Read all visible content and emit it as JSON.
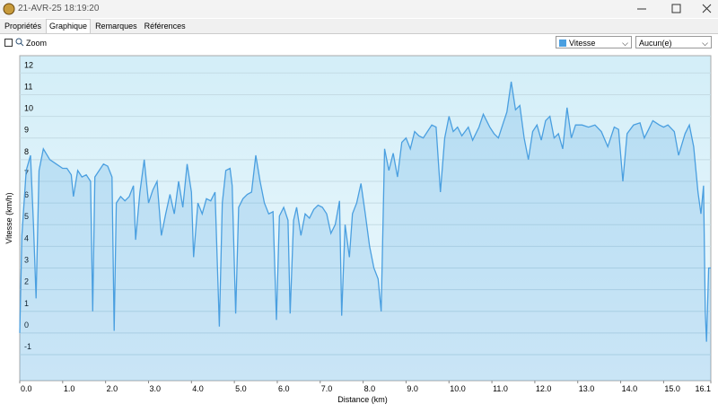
{
  "window": {
    "title": "21-AVR-25 18:19:20"
  },
  "tabs": [
    "Propriétés",
    "Graphique",
    "Remarques",
    "Références"
  ],
  "toolbar": {
    "zoom": "Zoom",
    "second_select": "Aucun(e)"
  },
  "chart_data": {
    "type": "line",
    "x_label": "Distance  (km)",
    "y_label": "Vitesse (km/h)",
    "x": [
      0.0,
      0.05,
      0.15,
      0.25,
      0.32,
      0.38,
      0.45,
      0.55,
      0.7,
      0.85,
      1.0,
      1.1,
      1.2,
      1.25,
      1.35,
      1.45,
      1.55,
      1.65,
      1.7,
      1.75,
      1.85,
      1.95,
      2.05,
      2.15,
      2.2,
      2.25,
      2.35,
      2.45,
      2.55,
      2.65,
      2.7,
      2.8,
      2.9,
      3.0,
      3.1,
      3.2,
      3.3,
      3.4,
      3.5,
      3.6,
      3.7,
      3.8,
      3.9,
      4.0,
      4.05,
      4.15,
      4.25,
      4.35,
      4.45,
      4.55,
      4.65,
      4.72,
      4.8,
      4.9,
      4.95,
      5.03,
      5.1,
      5.2,
      5.3,
      5.4,
      5.5,
      5.6,
      5.7,
      5.8,
      5.9,
      5.98,
      6.05,
      6.15,
      6.25,
      6.3,
      6.38,
      6.45,
      6.55,
      6.65,
      6.75,
      6.85,
      6.95,
      7.05,
      7.15,
      7.25,
      7.35,
      7.45,
      7.5,
      7.58,
      7.68,
      7.75,
      7.85,
      7.95,
      8.05,
      8.15,
      8.25,
      8.35,
      8.42,
      8.5,
      8.6,
      8.7,
      8.8,
      8.9,
      9.0,
      9.1,
      9.2,
      9.3,
      9.4,
      9.5,
      9.6,
      9.7,
      9.8,
      9.9,
      10.0,
      10.1,
      10.2,
      10.3,
      10.45,
      10.55,
      10.7,
      10.8,
      10.95,
      11.05,
      11.15,
      11.25,
      11.35,
      11.45,
      11.55,
      11.65,
      11.75,
      11.85,
      11.95,
      12.05,
      12.15,
      12.25,
      12.35,
      12.45,
      12.55,
      12.65,
      12.75,
      12.85,
      12.95,
      13.1,
      13.25,
      13.4,
      13.55,
      13.7,
      13.85,
      13.95,
      14.05,
      14.15,
      14.3,
      14.45,
      14.55,
      14.65,
      14.75,
      14.9,
      15.0,
      15.1,
      15.25,
      15.35,
      15.5,
      15.6,
      15.7,
      15.8,
      15.87,
      15.93,
      15.97,
      16.0,
      16.05,
      16.1
    ],
    "series": [
      {
        "name": "Vitesse",
        "color": "#4a9fe0",
        "values": [
          0.0,
          4.5,
          7.5,
          8.2,
          5.0,
          1.6,
          7.5,
          8.5,
          8.0,
          7.8,
          7.6,
          7.6,
          7.3,
          6.3,
          7.5,
          7.2,
          7.3,
          7.0,
          1.0,
          7.2,
          7.5,
          7.8,
          7.7,
          7.2,
          0.1,
          6.0,
          6.3,
          6.1,
          6.3,
          6.8,
          4.3,
          6.5,
          8.0,
          6.0,
          6.6,
          7.0,
          4.5,
          5.5,
          6.4,
          5.5,
          7.0,
          5.8,
          7.8,
          6.5,
          3.5,
          6.0,
          5.5,
          6.2,
          6.1,
          6.5,
          0.3,
          6.0,
          7.5,
          7.6,
          6.8,
          0.9,
          5.8,
          6.2,
          6.4,
          6.5,
          8.2,
          7.0,
          6.0,
          5.5,
          5.6,
          0.6,
          5.4,
          5.8,
          5.2,
          0.9,
          5.2,
          5.8,
          4.5,
          5.5,
          5.3,
          5.7,
          5.9,
          5.8,
          5.5,
          4.6,
          5.0,
          6.1,
          0.8,
          5.0,
          3.5,
          5.5,
          6.0,
          6.9,
          5.5,
          4.0,
          3.0,
          2.5,
          1.0,
          8.5,
          7.5,
          8.3,
          7.2,
          8.8,
          9.0,
          8.5,
          9.3,
          9.1,
          9.0,
          9.3,
          9.6,
          9.5,
          6.5,
          9.0,
          10.0,
          9.3,
          9.5,
          9.1,
          9.5,
          8.9,
          9.5,
          10.1,
          9.5,
          9.2,
          9.0,
          9.6,
          10.2,
          11.6,
          10.3,
          10.5,
          9.0,
          8.0,
          9.3,
          9.6,
          8.9,
          9.8,
          10.0,
          9.0,
          9.2,
          8.5,
          10.4,
          9.0,
          9.6,
          9.6,
          9.5,
          9.6,
          9.3,
          8.6,
          9.5,
          9.4,
          7.0,
          9.2,
          9.6,
          9.7,
          9.0,
          9.4,
          9.8,
          9.6,
          9.5,
          9.6,
          9.3,
          8.2,
          9.2,
          9.6,
          8.6,
          6.5,
          5.5,
          6.8,
          1.0,
          -0.4,
          3.0,
          3.0
        ]
      }
    ],
    "xlim": [
      0,
      16.1
    ],
    "ylim": [
      -2.2,
      12.8
    ],
    "xticks": [
      {
        "value": 0,
        "label": "0.0"
      },
      {
        "value": 1,
        "label": "1.0"
      },
      {
        "value": 2,
        "label": "2.0"
      },
      {
        "value": 3,
        "label": "3.0"
      },
      {
        "value": 4,
        "label": "4.0"
      },
      {
        "value": 5,
        "label": "5.0"
      },
      {
        "value": 6,
        "label": "6.0"
      },
      {
        "value": 7,
        "label": "7.0"
      },
      {
        "value": 8,
        "label": "8.0"
      },
      {
        "value": 9,
        "label": "9.0"
      },
      {
        "value": 10,
        "label": "10.0"
      },
      {
        "value": 11,
        "label": "11.0"
      },
      {
        "value": 12,
        "label": "12.0"
      },
      {
        "value": 13,
        "label": "13.0"
      },
      {
        "value": 14,
        "label": "14.0"
      },
      {
        "value": 15,
        "label": "15.0"
      },
      {
        "value": 16.1,
        "label": "16.1"
      }
    ],
    "yticks": [
      -1,
      0,
      1,
      2,
      3,
      4,
      5,
      6,
      7,
      8,
      9,
      10,
      11,
      12
    ],
    "grid": true
  }
}
